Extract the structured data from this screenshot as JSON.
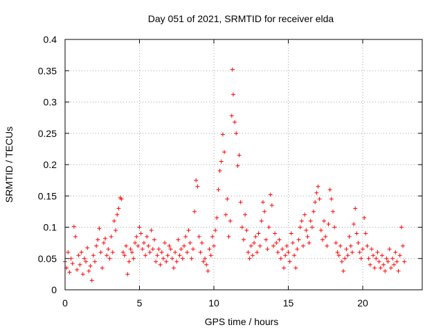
{
  "chart_data": {
    "type": "scatter",
    "title": "Day 051 of 2021, SRMTID for receiver elda",
    "xlabel": "GPS time / hours",
    "ylabel": "SRMTID / TECUs",
    "xlim": [
      0,
      24
    ],
    "ylim": [
      0,
      0.4
    ],
    "x_ticks": [
      0,
      5,
      10,
      15,
      20
    ],
    "x_tick_labels": [
      "0",
      "5",
      "10",
      "15",
      "20"
    ],
    "y_ticks": [
      0,
      0.05,
      0.1,
      0.15,
      0.2,
      0.25,
      0.3,
      0.35,
      0.4
    ],
    "y_tick_labels": [
      "0",
      "0.05",
      "0.1",
      "0.15",
      "0.2",
      "0.25",
      "0.3",
      "0.35",
      "0.4"
    ],
    "grid": true,
    "marker": "+",
    "color": "#ff0000",
    "series": [
      {
        "name": "SRMTID",
        "points": [
          [
            0.0,
            0.045
          ],
          [
            0.1,
            0.035
          ],
          [
            0.2,
            0.06
          ],
          [
            0.3,
            0.028
          ],
          [
            0.4,
            0.05
          ],
          [
            0.5,
            0.042
          ],
          [
            0.6,
            0.101
          ],
          [
            0.7,
            0.085
          ],
          [
            0.8,
            0.032
          ],
          [
            0.9,
            0.055
          ],
          [
            1.0,
            0.04
          ],
          [
            1.1,
            0.06
          ],
          [
            1.2,
            0.025
          ],
          [
            1.3,
            0.05
          ],
          [
            1.4,
            0.045
          ],
          [
            1.5,
            0.067
          ],
          [
            1.6,
            0.03
          ],
          [
            1.7,
            0.038
          ],
          [
            1.8,
            0.015
          ],
          [
            1.9,
            0.055
          ],
          [
            2.0,
            0.045
          ],
          [
            2.1,
            0.07
          ],
          [
            2.2,
            0.08
          ],
          [
            2.3,
            0.098
          ],
          [
            2.4,
            0.06
          ],
          [
            2.5,
            0.035
          ],
          [
            2.6,
            0.075
          ],
          [
            2.7,
            0.082
          ],
          [
            2.8,
            0.055
          ],
          [
            2.9,
            0.065
          ],
          [
            3.0,
            0.05
          ],
          [
            3.1,
            0.085
          ],
          [
            3.2,
            0.06
          ],
          [
            3.3,
            0.11
          ],
          [
            3.4,
            0.095
          ],
          [
            3.5,
            0.12
          ],
          [
            3.6,
            0.13
          ],
          [
            3.7,
            0.147
          ],
          [
            3.8,
            0.145
          ],
          [
            3.9,
            0.06
          ],
          [
            4.0,
            0.055
          ],
          [
            4.1,
            0.07
          ],
          [
            4.2,
            0.025
          ],
          [
            4.3,
            0.045
          ],
          [
            4.4,
            0.065
          ],
          [
            4.5,
            0.06
          ],
          [
            4.6,
            0.05
          ],
          [
            4.7,
            0.075
          ],
          [
            4.8,
            0.085
          ],
          [
            4.9,
            0.07
          ],
          [
            5.0,
            0.1
          ],
          [
            5.1,
            0.09
          ],
          [
            5.2,
            0.065
          ],
          [
            5.3,
            0.075
          ],
          [
            5.4,
            0.055
          ],
          [
            5.5,
            0.085
          ],
          [
            5.6,
            0.07
          ],
          [
            5.7,
            0.06
          ],
          [
            5.8,
            0.095
          ],
          [
            5.9,
            0.065
          ],
          [
            6.0,
            0.08
          ],
          [
            6.1,
            0.045
          ],
          [
            6.2,
            0.055
          ],
          [
            6.3,
            0.065
          ],
          [
            6.4,
            0.04
          ],
          [
            6.5,
            0.06
          ],
          [
            6.6,
            0.05
          ],
          [
            6.7,
            0.075
          ],
          [
            6.8,
            0.045
          ],
          [
            6.9,
            0.055
          ],
          [
            7.0,
            0.07
          ],
          [
            7.1,
            0.065
          ],
          [
            7.2,
            0.05
          ],
          [
            7.3,
            0.035
          ],
          [
            7.4,
            0.06
          ],
          [
            7.5,
            0.045
          ],
          [
            7.6,
            0.08
          ],
          [
            7.7,
            0.055
          ],
          [
            7.8,
            0.065
          ],
          [
            7.9,
            0.05
          ],
          [
            8.0,
            0.07
          ],
          [
            8.1,
            0.085
          ],
          [
            8.2,
            0.06
          ],
          [
            8.3,
            0.095
          ],
          [
            8.4,
            0.075
          ],
          [
            8.5,
            0.05
          ],
          [
            8.6,
            0.065
          ],
          [
            8.7,
            0.125
          ],
          [
            8.8,
            0.175
          ],
          [
            8.9,
            0.165
          ],
          [
            9.0,
            0.085
          ],
          [
            9.1,
            0.06
          ],
          [
            9.2,
            0.075
          ],
          [
            9.3,
            0.045
          ],
          [
            9.4,
            0.05
          ],
          [
            9.5,
            0.04
          ],
          [
            9.6,
            0.03
          ],
          [
            9.7,
            0.065
          ],
          [
            9.8,
            0.055
          ],
          [
            9.9,
            0.085
          ],
          [
            10.0,
            0.07
          ],
          [
            10.1,
            0.095
          ],
          [
            10.2,
            0.115
          ],
          [
            10.3,
            0.16
          ],
          [
            10.4,
            0.19
          ],
          [
            10.5,
            0.205
          ],
          [
            10.6,
            0.248
          ],
          [
            10.7,
            0.22
          ],
          [
            10.8,
            0.12
          ],
          [
            10.9,
            0.145
          ],
          [
            11.0,
            0.085
          ],
          [
            11.1,
            0.11
          ],
          [
            11.2,
            0.278
          ],
          [
            11.25,
            0.352
          ],
          [
            11.3,
            0.312
          ],
          [
            11.4,
            0.268
          ],
          [
            11.5,
            0.25
          ],
          [
            11.6,
            0.198
          ],
          [
            11.7,
            0.215
          ],
          [
            11.8,
            0.14
          ],
          [
            11.9,
            0.1
          ],
          [
            12.0,
            0.08
          ],
          [
            12.1,
            0.12
          ],
          [
            12.2,
            0.095
          ],
          [
            12.3,
            0.06
          ],
          [
            12.4,
            0.05
          ],
          [
            12.5,
            0.07
          ],
          [
            12.6,
            0.055
          ],
          [
            12.7,
            0.075
          ],
          [
            12.8,
            0.085
          ],
          [
            12.9,
            0.06
          ],
          [
            13.0,
            0.09
          ],
          [
            13.1,
            0.07
          ],
          [
            13.2,
            0.11
          ],
          [
            13.3,
            0.14
          ],
          [
            13.4,
            0.125
          ],
          [
            13.5,
            0.08
          ],
          [
            13.6,
            0.065
          ],
          [
            13.7,
            0.1
          ],
          [
            13.8,
            0.152
          ],
          [
            13.9,
            0.135
          ],
          [
            14.0,
            0.07
          ],
          [
            14.1,
            0.09
          ],
          [
            14.2,
            0.075
          ],
          [
            14.3,
            0.06
          ],
          [
            14.4,
            0.08
          ],
          [
            14.5,
            0.05
          ],
          [
            14.6,
            0.065
          ],
          [
            14.7,
            0.035
          ],
          [
            14.8,
            0.055
          ],
          [
            14.9,
            0.07
          ],
          [
            15.0,
            0.06
          ],
          [
            15.1,
            0.045
          ],
          [
            15.2,
            0.09
          ],
          [
            15.3,
            0.075
          ],
          [
            15.4,
            0.055
          ],
          [
            15.5,
            0.035
          ],
          [
            15.6,
            0.065
          ],
          [
            15.7,
            0.08
          ],
          [
            15.8,
            0.1
          ],
          [
            15.9,
            0.11
          ],
          [
            16.0,
            0.07
          ],
          [
            16.1,
            0.12
          ],
          [
            16.2,
            0.095
          ],
          [
            16.3,
            0.085
          ],
          [
            16.4,
            0.075
          ],
          [
            16.5,
            0.11
          ],
          [
            16.6,
            0.1
          ],
          [
            16.7,
            0.125
          ],
          [
            16.8,
            0.14
          ],
          [
            16.9,
            0.155
          ],
          [
            17.0,
            0.165
          ],
          [
            17.1,
            0.145
          ],
          [
            17.2,
            0.095
          ],
          [
            17.3,
            0.08
          ],
          [
            17.4,
            0.11
          ],
          [
            17.5,
            0.085
          ],
          [
            17.6,
            0.07
          ],
          [
            17.7,
            0.105
          ],
          [
            17.8,
            0.16
          ],
          [
            17.9,
            0.145
          ],
          [
            18.0,
            0.125
          ],
          [
            18.1,
            0.1
          ],
          [
            18.2,
            0.075
          ],
          [
            18.3,
            0.06
          ],
          [
            18.4,
            0.055
          ],
          [
            18.5,
            0.07
          ],
          [
            18.6,
            0.045
          ],
          [
            18.7,
            0.03
          ],
          [
            18.8,
            0.05
          ],
          [
            18.9,
            0.065
          ],
          [
            19.0,
            0.055
          ],
          [
            19.1,
            0.085
          ],
          [
            19.2,
            0.07
          ],
          [
            19.3,
            0.06
          ],
          [
            19.4,
            0.105
          ],
          [
            19.5,
            0.13
          ],
          [
            19.6,
            0.09
          ],
          [
            19.7,
            0.075
          ],
          [
            19.8,
            0.06
          ],
          [
            19.9,
            0.05
          ],
          [
            20.0,
            0.065
          ],
          [
            20.1,
            0.115
          ],
          [
            20.2,
            0.09
          ],
          [
            20.3,
            0.07
          ],
          [
            20.4,
            0.05
          ],
          [
            20.5,
            0.04
          ],
          [
            20.6,
            0.065
          ],
          [
            20.7,
            0.055
          ],
          [
            20.8,
            0.035
          ],
          [
            20.9,
            0.05
          ],
          [
            21.0,
            0.06
          ],
          [
            21.1,
            0.045
          ],
          [
            21.2,
            0.035
          ],
          [
            21.3,
            0.055
          ],
          [
            21.4,
            0.04
          ],
          [
            21.5,
            0.03
          ],
          [
            21.6,
            0.05
          ],
          [
            21.7,
            0.045
          ],
          [
            21.8,
            0.065
          ],
          [
            21.9,
            0.035
          ],
          [
            22.0,
            0.05
          ],
          [
            22.1,
            0.04
          ],
          [
            22.2,
            0.06
          ],
          [
            22.3,
            0.045
          ],
          [
            22.4,
            0.03
          ],
          [
            22.5,
            0.055
          ],
          [
            22.6,
            0.1
          ],
          [
            22.7,
            0.07
          ],
          [
            22.8,
            0.045
          ]
        ]
      }
    ]
  }
}
